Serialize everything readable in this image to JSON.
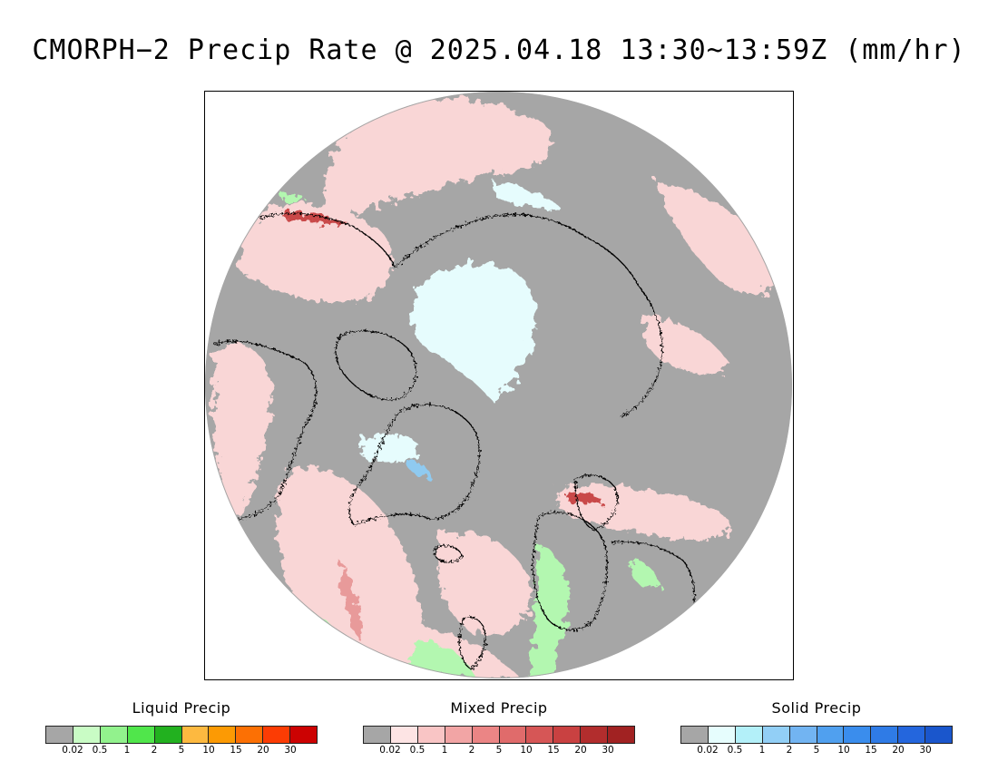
{
  "title": "CMORPH−2 Precip Rate @ 2025.04.18 13:30~13:59Z (mm/hr)",
  "map": {
    "projection": "north-polar-stereographic",
    "colors": {
      "no_precip": "#a6a6a6",
      "outside": "#ffffff",
      "coastline": "#000000",
      "mixed_light": "#f9d6d6",
      "mixed_mod": "#e89a9a",
      "mixed_heavy": "#c9494a",
      "solid_light": "#e6fcfd",
      "solid_mod": "#8fcaf0",
      "liquid_light": "#b3f7b0"
    }
  },
  "legends": [
    {
      "title": "Liquid Precip",
      "colors": [
        "#a6a6a6",
        "#c9fcc5",
        "#92f28d",
        "#50e64b",
        "#22b11f",
        "#fdb940",
        "#fc9a04",
        "#fc7004",
        "#fc3c04",
        "#cc0202"
      ],
      "ticks": [
        "0.02",
        "0.5",
        "1",
        "2",
        "5",
        "10",
        "15",
        "20",
        "30"
      ]
    },
    {
      "title": "Mixed Precip",
      "colors": [
        "#a6a6a6",
        "#fde4e4",
        "#f9c5c5",
        "#f2a5a5",
        "#eb8585",
        "#e06b6b",
        "#d65656",
        "#c94141",
        "#b22d2d",
        "#a12222"
      ],
      "ticks": [
        "0.02",
        "0.5",
        "1",
        "2",
        "5",
        "10",
        "15",
        "20",
        "30"
      ]
    },
    {
      "title": "Solid Precip",
      "colors": [
        "#a6a6a6",
        "#e6fdfd",
        "#b3f0f9",
        "#92cff6",
        "#72b4f2",
        "#50a0ef",
        "#3a8ded",
        "#2f7be6",
        "#2466dd",
        "#1a56cc"
      ],
      "ticks": [
        "0.02",
        "0.5",
        "1",
        "2",
        "5",
        "10",
        "15",
        "20",
        "30"
      ]
    }
  ]
}
